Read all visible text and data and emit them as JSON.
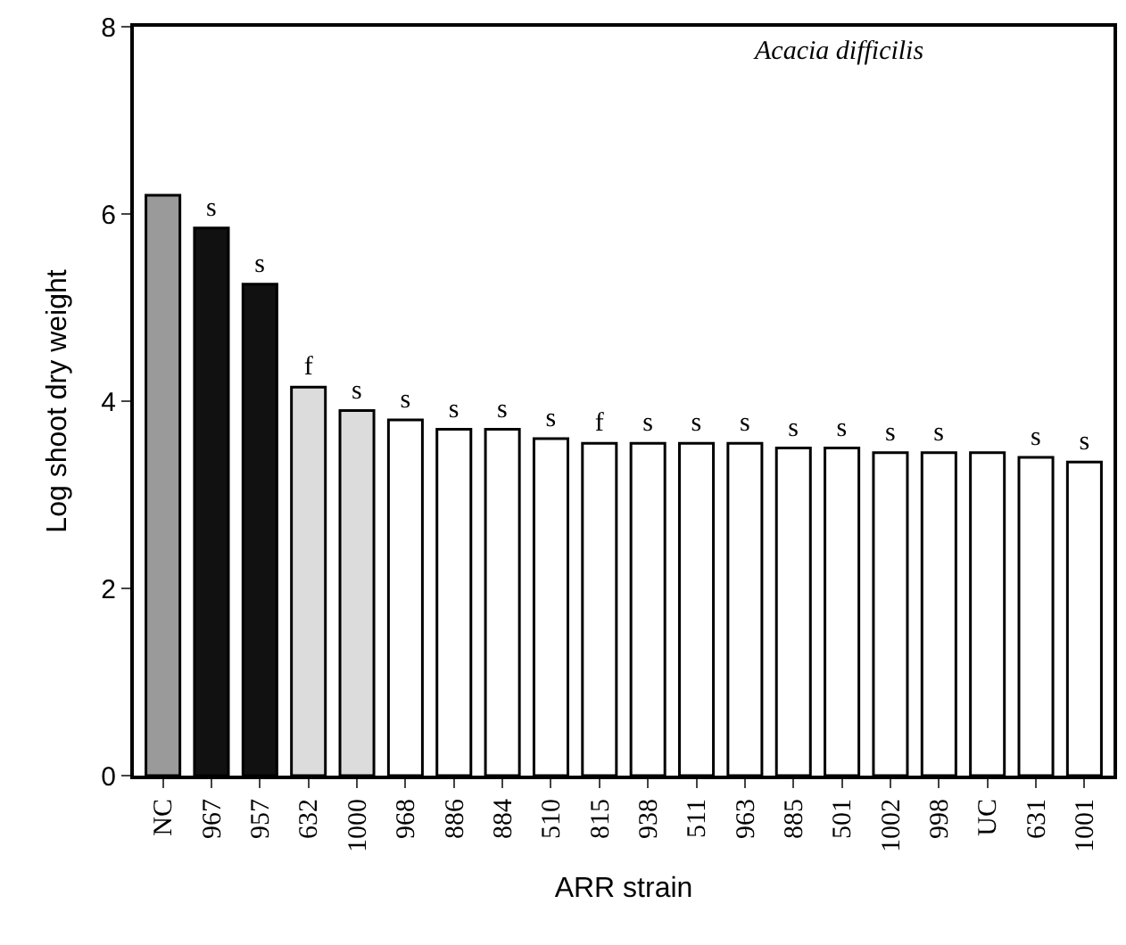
{
  "chart_data": {
    "type": "bar",
    "xlabel": "ARR strain",
    "ylabel": "Log shoot dry weight",
    "annotations": [
      "Acacia difficilis"
    ],
    "categories": [
      "NC",
      "967",
      "957",
      "632",
      "1000",
      "968",
      "886",
      "884",
      "510",
      "815",
      "938",
      "511",
      "963",
      "885",
      "501",
      "1002",
      "998",
      "UC",
      "631",
      "1001"
    ],
    "values": [
      6.2,
      5.85,
      5.25,
      4.15,
      3.9,
      3.8,
      3.7,
      3.7,
      3.6,
      3.55,
      3.55,
      3.55,
      3.55,
      3.5,
      3.5,
      3.45,
      3.45,
      3.45,
      3.4,
      3.35
    ],
    "colors": [
      "#9a9a9a",
      "#111111",
      "#111111",
      "#dcdcdc",
      "#dcdcdc",
      "#ffffff",
      "#ffffff",
      "#ffffff",
      "#ffffff",
      "#ffffff",
      "#ffffff",
      "#ffffff",
      "#ffffff",
      "#ffffff",
      "#ffffff",
      "#ffffff",
      "#ffffff",
      "#ffffff",
      "#ffffff",
      "#ffffff"
    ],
    "value_labels": [
      null,
      "s",
      "s",
      "f",
      "s",
      "s",
      "s",
      "s",
      "s",
      "f",
      "s",
      "s",
      "s",
      "s",
      "s",
      "s",
      "s",
      null,
      "s",
      "s"
    ],
    "ylim": [
      0,
      8
    ],
    "yticks": [
      0,
      2,
      4,
      6,
      8
    ],
    "legend": false
  }
}
